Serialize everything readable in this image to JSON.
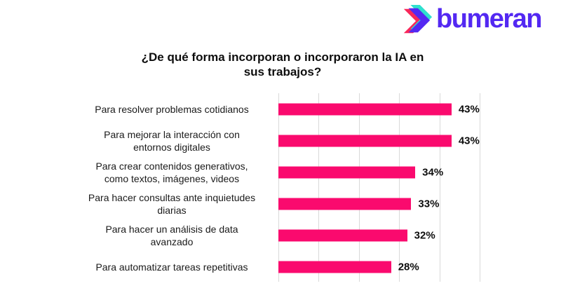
{
  "logo": {
    "brand_text": "bumeran",
    "icon": "bumeran-chevron-icon",
    "colors": {
      "purple": "#5328F2",
      "teal": "#2EE0CE",
      "pink": "#F8285A"
    }
  },
  "title": {
    "text": "¿De qué forma incorporan o incorporaron la IA en\nsus trabajos?"
  },
  "chart_data": {
    "type": "bar",
    "orientation": "horizontal",
    "title": "¿De qué forma incorporan o incorporaron la IA en sus trabajos?",
    "categories": [
      "Para resolver problemas cotidianos",
      "Para mejorar la interacción con\nentornos digitales",
      "Para crear contenidos generativos,\ncomo textos, imágenes, videos",
      "Para hacer consultas ante inquietudes\ndiarias",
      "Para hacer un análisis de data\navanzado",
      "Para automatizar tareas repetitivas"
    ],
    "values": [
      43,
      43,
      34,
      33,
      32,
      28
    ],
    "value_labels": [
      "43%",
      "43%",
      "34%",
      "33%",
      "32%",
      "28%"
    ],
    "xlabel": "",
    "ylabel": "",
    "xlim": [
      0,
      50
    ],
    "gridline_interval": 10,
    "grid": "vertical-only",
    "axis_tick_labels_shown": false,
    "bar_color": "#FA0A6E",
    "gridline_color": "#D9D9D9",
    "value_label_position": "outside-end"
  }
}
